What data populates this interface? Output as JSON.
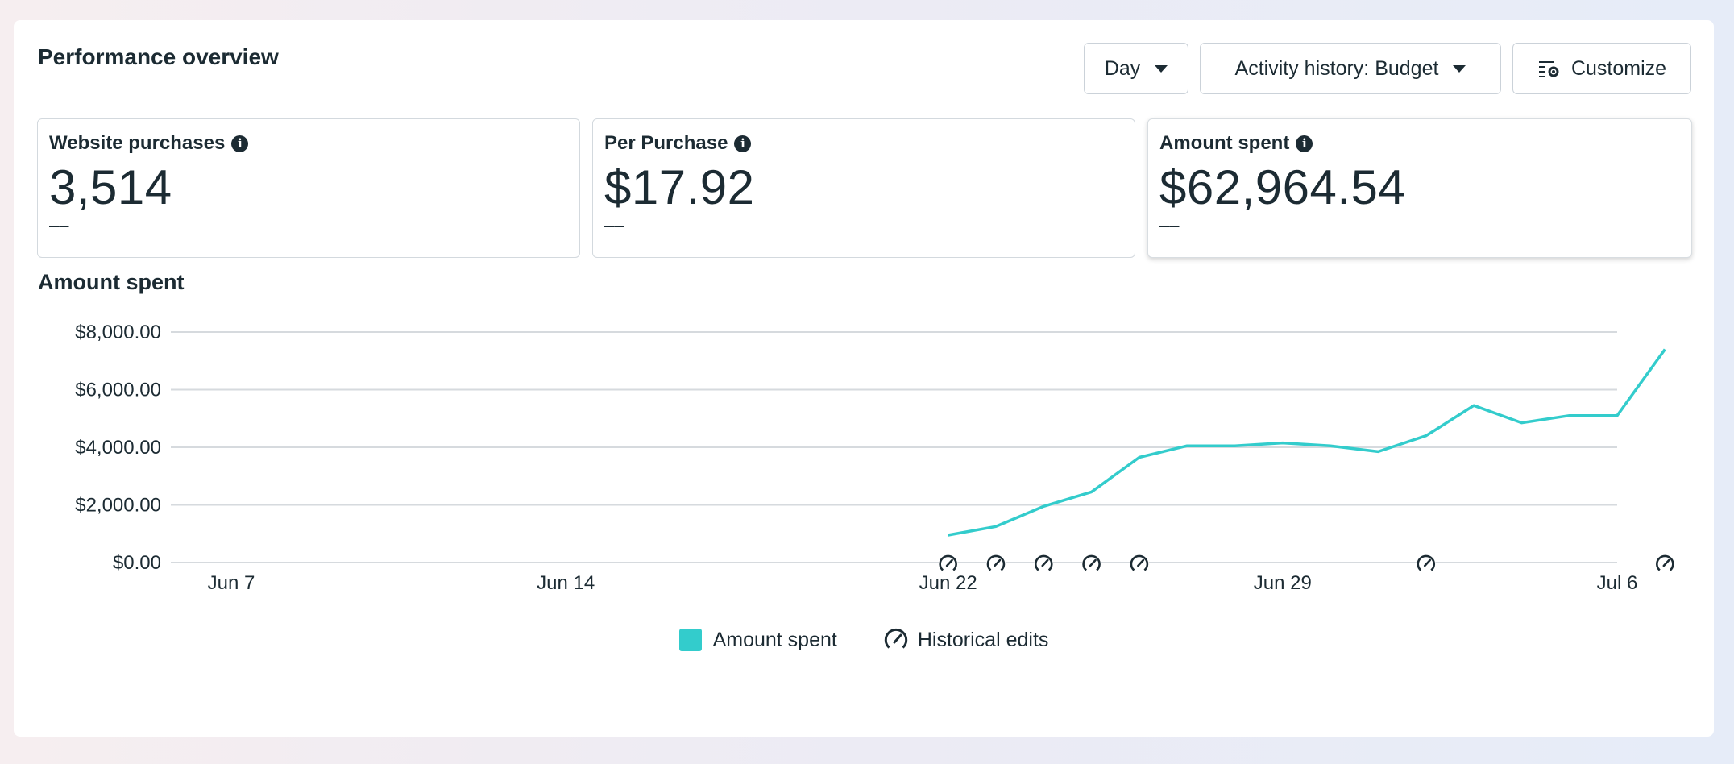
{
  "header": {
    "title": "Performance overview",
    "day_label": "Day",
    "activity_label": "Activity history: Budget",
    "customize_label": "Customize"
  },
  "metrics": [
    {
      "label": "Website purchases",
      "value": "3,514",
      "compare": "––"
    },
    {
      "label": "Per Purchase",
      "value": "$17.92",
      "compare": "––"
    },
    {
      "label": "Amount spent",
      "value": "$62,964.54",
      "compare": "––"
    }
  ],
  "chart_title": "Amount spent",
  "legend": {
    "series_label": "Amount spent",
    "edits_label": "Historical edits"
  },
  "colors": {
    "line": "#33cccc",
    "grid": "#d6dade",
    "text": "#1c2b33"
  },
  "chart_data": {
    "type": "line",
    "title": "Amount spent",
    "xlabel": "",
    "ylabel": "",
    "ylim": [
      0,
      8000
    ],
    "x_range": [
      7,
      36
    ],
    "x_ticks": [
      {
        "day": 7,
        "label": "Jun 7"
      },
      {
        "day": 14,
        "label": "Jun 14"
      },
      {
        "day": 22,
        "label": "Jun 22"
      },
      {
        "day": 29,
        "label": "Jun 29"
      },
      {
        "day": 36,
        "label": "Jul 6"
      }
    ],
    "y_ticks": [
      {
        "value": 0,
        "label": "$0.00"
      },
      {
        "value": 2000,
        "label": "$2,000.00"
      },
      {
        "value": 4000,
        "label": "$4,000.00"
      },
      {
        "value": 6000,
        "label": "$6,000.00"
      },
      {
        "value": 8000,
        "label": "$8,000.00"
      }
    ],
    "series": [
      {
        "name": "Amount spent",
        "x": [
          22,
          23,
          24,
          25,
          26,
          27,
          28,
          29,
          30,
          31,
          32,
          33,
          34,
          35,
          36,
          37
        ],
        "values": [
          950,
          1250,
          1950,
          2450,
          3650,
          4050,
          4050,
          4150,
          4050,
          3850,
          4400,
          5450,
          4850,
          5100,
          5100,
          7400
        ]
      }
    ],
    "historical_edits_x": [
      22,
      23,
      24,
      25,
      26,
      32,
      37
    ]
  }
}
